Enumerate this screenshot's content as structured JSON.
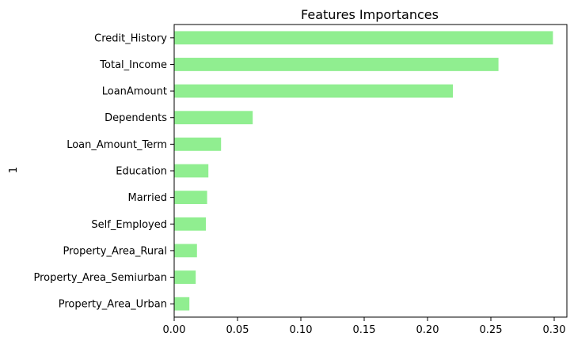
{
  "chart_data": {
    "type": "bar",
    "orientation": "horizontal",
    "title": "Features Importances",
    "xlabel": "",
    "ylabel": "1",
    "categories": [
      "Credit_History",
      "Total_Income",
      "LoanAmount",
      "Dependents",
      "Loan_Amount_Term",
      "Education",
      "Married",
      "Self_Employed",
      "Property_Area_Rural",
      "Property_Area_Semiurban",
      "Property_Area_Urban"
    ],
    "values": [
      0.299,
      0.256,
      0.22,
      0.062,
      0.037,
      0.027,
      0.026,
      0.025,
      0.018,
      0.017,
      0.012
    ],
    "xlim": [
      0.0,
      0.31
    ],
    "xticks": [
      0.0,
      0.05,
      0.1,
      0.15,
      0.2,
      0.25,
      0.3
    ],
    "xtick_labels": [
      "0.00",
      "0.05",
      "0.10",
      "0.15",
      "0.20",
      "0.25",
      "0.30"
    ],
    "bar_color": "#90ee90",
    "grid": false,
    "legend": "none"
  }
}
